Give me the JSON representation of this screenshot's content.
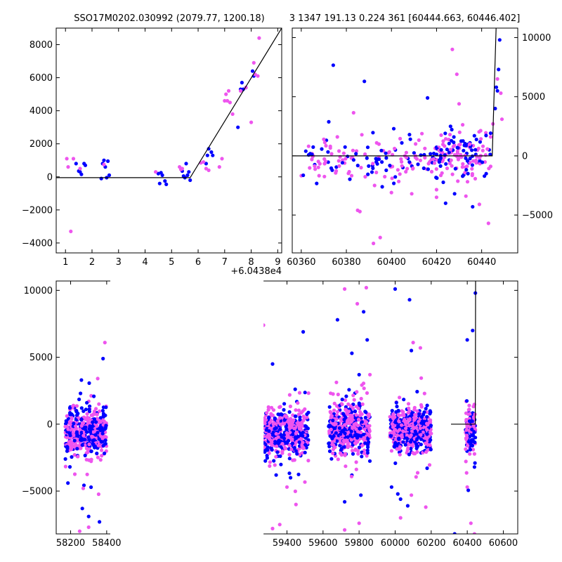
{
  "titles": {
    "left": "SSO17M0202.030992 (2079.77, 1200.18)",
    "right": "3 1347 191.13 0.224 361 [60444.663, 60446.402]"
  },
  "colors": {
    "series_blue": "#0000ff",
    "series_pink": "#ee55ee",
    "model_line": "#000000",
    "axes": "#000000",
    "background": "#ffffff"
  },
  "chart_data": [
    {
      "id": "top-left",
      "type": "scatter",
      "title": "SSO17M0202.030992 (2079.77, 1200.18)",
      "xlim": [
        0.65,
        9.15
      ],
      "ylim": [
        -4600,
        9000
      ],
      "xticks": [
        1,
        2,
        3,
        4,
        5,
        6,
        7,
        8,
        9
      ],
      "yticks": [
        -4000,
        -2000,
        0,
        2000,
        4000,
        6000,
        8000
      ],
      "x_offset_label": "+6.0438e4",
      "grid": false,
      "series": [
        {
          "color_key": "series_blue",
          "points": [
            [
              1.4,
              800
            ],
            [
              1.5,
              350
            ],
            [
              1.55,
              300
            ],
            [
              1.6,
              150
            ],
            [
              1.7,
              800
            ],
            [
              1.75,
              700
            ],
            [
              2.35,
              -100
            ],
            [
              2.4,
              800
            ],
            [
              2.45,
              1000
            ],
            [
              2.5,
              600
            ],
            [
              2.55,
              -50
            ],
            [
              2.6,
              950
            ],
            [
              2.65,
              100
            ],
            [
              4.5,
              200
            ],
            [
              4.55,
              -400
            ],
            [
              4.6,
              250
            ],
            [
              4.65,
              100
            ],
            [
              4.75,
              -250
            ],
            [
              4.8,
              -450
            ],
            [
              5.4,
              350
            ],
            [
              5.45,
              50
            ],
            [
              5.5,
              -50
            ],
            [
              5.55,
              800
            ],
            [
              5.6,
              100
            ],
            [
              5.65,
              300
            ],
            [
              5.7,
              -200
            ],
            [
              6.3,
              800
            ],
            [
              6.35,
              1300
            ],
            [
              6.4,
              1700
            ],
            [
              6.5,
              1500
            ],
            [
              6.55,
              1300
            ],
            [
              7.5,
              3000
            ],
            [
              7.6,
              5300
            ],
            [
              7.65,
              5700
            ],
            [
              7.7,
              5300
            ],
            [
              7.8,
              5400
            ],
            [
              8.05,
              6400
            ],
            [
              8.1,
              6100
            ]
          ]
        },
        {
          "color_key": "series_pink",
          "points": [
            [
              1.05,
              1100
            ],
            [
              1.1,
              600
            ],
            [
              1.2,
              -3300
            ],
            [
              1.3,
              1100
            ],
            [
              1.55,
              500
            ],
            [
              2.45,
              750
            ],
            [
              4.4,
              300
            ],
            [
              5.3,
              600
            ],
            [
              5.35,
              450
            ],
            [
              5.4,
              500
            ],
            [
              6.1,
              850
            ],
            [
              6.2,
              900
            ],
            [
              6.3,
              500
            ],
            [
              6.4,
              400
            ],
            [
              6.8,
              600
            ],
            [
              6.9,
              1100
            ],
            [
              7.0,
              4600
            ],
            [
              7.05,
              5000
            ],
            [
              7.1,
              4600
            ],
            [
              7.15,
              5200
            ],
            [
              7.2,
              4500
            ],
            [
              7.3,
              3800
            ],
            [
              7.6,
              5200
            ],
            [
              7.8,
              5400
            ],
            [
              8.0,
              3300
            ],
            [
              8.1,
              6900
            ],
            [
              8.15,
              6200
            ],
            [
              8.25,
              6100
            ],
            [
              8.3,
              8400
            ]
          ]
        }
      ],
      "model_line": [
        [
          0.65,
          -50
        ],
        [
          5.7,
          -50
        ],
        [
          9.15,
          9000
        ]
      ]
    },
    {
      "id": "top-right",
      "type": "scatter",
      "title": "3 1347 191.13 0.224 361 [60444.663, 60446.402]",
      "xlim": [
        60356,
        60456
      ],
      "ylim": [
        -8200,
        10800
      ],
      "xticks": [
        60360,
        60380,
        60400,
        60420,
        60440
      ],
      "yticks": [
        -5000,
        0,
        5000,
        10000
      ],
      "y_axis_side": "right",
      "grid": false,
      "clusters": [
        {
          "x_from": 60359,
          "x_to": 60444,
          "count": 220,
          "y_center": -300,
          "y_spread": 1600,
          "seed": 11
        },
        {
          "x_from": 60420,
          "x_to": 60444,
          "count": 90,
          "y_center": 300,
          "y_spread": 1300,
          "seed": 23
        }
      ],
      "extra_points": [
        {
          "color_key": "series_blue",
          "points": [
            [
              60388,
              6300
            ],
            [
              60416,
              4900
            ],
            [
              60401,
              2300
            ],
            [
              60408,
              1800
            ],
            [
              60424,
              -4000
            ],
            [
              60428,
              -3200
            ],
            [
              60436,
              -4300
            ],
            [
              60442,
              -1500
            ],
            [
              60446,
              4000
            ],
            [
              60447,
              5500
            ],
            [
              60448,
              9800
            ],
            [
              60446.5,
              5800
            ],
            [
              60447.5,
              7300
            ]
          ]
        },
        {
          "color_key": "series_pink",
          "points": [
            [
              60427,
              9000
            ],
            [
              60429,
              6900
            ],
            [
              60430,
              4400
            ],
            [
              60385,
              -4600
            ],
            [
              60386,
              -4700
            ],
            [
              60392,
              -7400
            ],
            [
              60392.5,
              -2500
            ],
            [
              60395,
              -6900
            ],
            [
              60400,
              -3100
            ],
            [
              60409,
              -3200
            ],
            [
              60420,
              -3500
            ],
            [
              60433,
              -3400
            ],
            [
              60439,
              -4100
            ],
            [
              60443,
              -5700
            ],
            [
              60370,
              1400
            ],
            [
              60376,
              1600
            ],
            [
              60447,
              6500
            ],
            [
              60448.5,
              5300
            ],
            [
              60449,
              3100
            ],
            [
              60445,
              2700
            ]
          ]
        }
      ],
      "model_line": [
        [
          60356,
          0
        ],
        [
          60444.7,
          0
        ],
        [
          60446.4,
          10800
        ]
      ]
    },
    {
      "id": "bottom",
      "type": "scatter",
      "xlim": [
        58120,
        60680
      ],
      "ylim": [
        -8200,
        10700
      ],
      "xticks": [
        58200,
        58400,
        59400,
        59600,
        59800,
        60000,
        60200,
        60400,
        60600
      ],
      "yticks": [
        -5000,
        0,
        5000,
        10000
      ],
      "broken_x_axis": true,
      "gap": [
        58420,
        59270
      ],
      "grid": false,
      "clusters": [
        {
          "x_from": 58170,
          "x_to": 58400,
          "count": 480,
          "y_center": -600,
          "y_spread": 1500,
          "seed": 101
        },
        {
          "x_from": 59270,
          "x_to": 59520,
          "count": 520,
          "y_center": -700,
          "y_spread": 1500,
          "seed": 202
        },
        {
          "x_from": 59630,
          "x_to": 59860,
          "count": 520,
          "y_center": -400,
          "y_spread": 1600,
          "seed": 303
        },
        {
          "x_from": 59970,
          "x_to": 60200,
          "count": 480,
          "y_center": -500,
          "y_spread": 1500,
          "seed": 404
        },
        {
          "x_from": 60390,
          "x_to": 60445,
          "count": 140,
          "y_center": -400,
          "y_spread": 1400,
          "seed": 505
        }
      ],
      "extra_points": [
        {
          "color_key": "series_blue",
          "points": [
            [
              58260,
              3300
            ],
            [
              58255,
              2300
            ],
            [
              58290,
              1600
            ],
            [
              58380,
              4900
            ],
            [
              58185,
              -4400
            ],
            [
              58265,
              -6300
            ],
            [
              58300,
              -6900
            ],
            [
              58360,
              -7300
            ],
            [
              59320,
              4500
            ],
            [
              59490,
              6900
            ],
            [
              59340,
              -3800
            ],
            [
              59420,
              -4000
            ],
            [
              59680,
              7800
            ],
            [
              59760,
              5300
            ],
            [
              59800,
              3700
            ],
            [
              59825,
              8400
            ],
            [
              59845,
              6300
            ],
            [
              59720,
              -5800
            ],
            [
              59810,
              -5300
            ],
            [
              60000,
              10100
            ],
            [
              60080,
              9300
            ],
            [
              60090,
              5500
            ],
            [
              59980,
              -4700
            ],
            [
              60030,
              -5600
            ],
            [
              60070,
              -6100
            ],
            [
              60330,
              -8200
            ],
            [
              60400,
              6300
            ],
            [
              60430,
              7000
            ],
            [
              60445,
              9800
            ],
            [
              60440,
              -3200
            ]
          ]
        },
        {
          "color_key": "series_pink",
          "points": [
            [
              58390,
              6100
            ],
            [
              58250,
              -8000
            ],
            [
              58300,
              -7700
            ],
            [
              58270,
              -4800
            ],
            [
              59270,
              7400
            ],
            [
              59320,
              -7800
            ],
            [
              59360,
              -7500
            ],
            [
              59400,
              -4700
            ],
            [
              59450,
              -6000
            ],
            [
              59720,
              10100
            ],
            [
              59790,
              9000
            ],
            [
              59840,
              10200
            ],
            [
              59860,
              3700
            ],
            [
              59720,
              -7900
            ],
            [
              59800,
              -7400
            ],
            [
              60100,
              6100
            ],
            [
              60140,
              5700
            ],
            [
              60030,
              -7000
            ],
            [
              60090,
              -5300
            ],
            [
              60170,
              -6200
            ],
            [
              60420,
              -7400
            ],
            [
              60400,
              -4700
            ],
            [
              60440,
              -8200
            ]
          ]
        }
      ],
      "model_line": [
        [
          60310,
          0
        ],
        [
          60444.7,
          0
        ],
        [
          60446.4,
          10700
        ]
      ]
    }
  ]
}
